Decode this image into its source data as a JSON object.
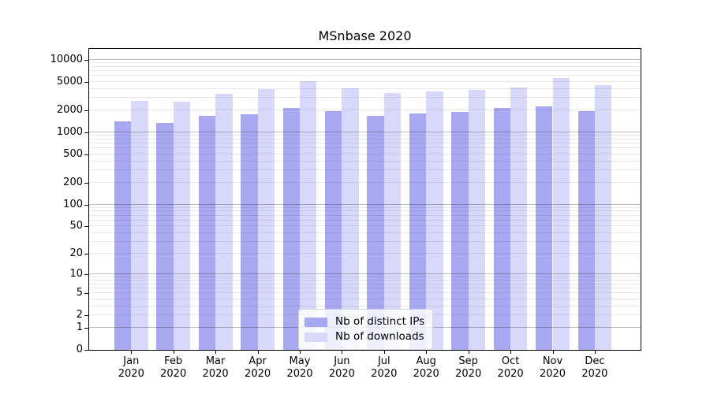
{
  "chart_data": {
    "type": "bar",
    "title": "MSnbase 2020",
    "year": "2020",
    "months": [
      "Jan",
      "Feb",
      "Mar",
      "Apr",
      "May",
      "Jun",
      "Jul",
      "Aug",
      "Sep",
      "Oct",
      "Nov",
      "Dec"
    ],
    "series": [
      {
        "name": "Nb of distinct IPs",
        "color": "#a8a8f0",
        "values": [
          1420,
          1350,
          1700,
          1780,
          2150,
          1950,
          1700,
          1810,
          1930,
          2190,
          2280,
          1965
        ]
      },
      {
        "name": "Nb of downloads",
        "color": "#d8d8fa",
        "values": [
          2700,
          2630,
          3410,
          3930,
          5050,
          4090,
          3520,
          3675,
          3835,
          4165,
          5580,
          4520
        ]
      }
    ],
    "y_ticks": [
      10000,
      5000,
      2000,
      1000,
      500,
      200,
      100,
      50,
      20,
      10,
      5,
      2,
      1,
      0
    ],
    "y_scale": "log10(value+1)",
    "ylim": [
      0,
      13900
    ],
    "xlabel": "",
    "ylabel": "",
    "grid": {
      "minor_color": "rgba(0,0,0,0.085)",
      "major_color": "rgba(0,0,0,0.25)"
    },
    "legend_position": "inside-bottom-center",
    "axis_color": "#000000",
    "background": "#ffffff"
  }
}
